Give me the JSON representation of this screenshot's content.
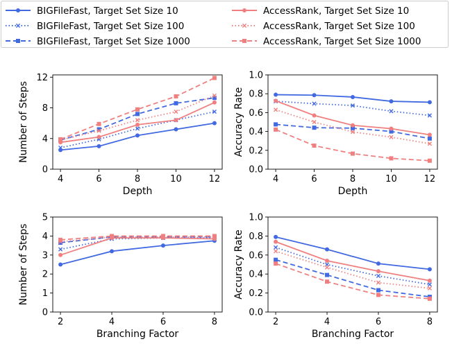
{
  "colors": {
    "blue": "#4169e1",
    "salmon": "#f08080"
  },
  "legend": [
    {
      "name": "BIGFileFast, Target Set Size 10",
      "color": "#4169e1",
      "dash": "solid",
      "marker": "circle"
    },
    {
      "name": "BIGFileFast, Target Set Size 100",
      "color": "#4169e1",
      "dash": "dotted",
      "marker": "x"
    },
    {
      "name": "BIGFileFast, Target Set Size 1000",
      "color": "#4169e1",
      "dash": "dashed",
      "marker": "square"
    },
    {
      "name": "AccessRank, Target Set Size 10",
      "color": "#f08080",
      "dash": "solid",
      "marker": "circle"
    },
    {
      "name": "AccessRank, Target Set Size 100",
      "color": "#f08080",
      "dash": "dotted",
      "marker": "x"
    },
    {
      "name": "AccessRank, Target Set Size 1000",
      "color": "#f08080",
      "dash": "dashed",
      "marker": "square"
    }
  ],
  "chart_data": [
    {
      "type": "line",
      "xlabel": "Depth",
      "ylabel": "Number of Steps",
      "x": [
        4,
        6,
        8,
        10,
        12
      ],
      "xticks": [
        "4",
        "6",
        "8",
        "10",
        "12"
      ],
      "xlim": [
        3.6,
        12.4
      ],
      "ylim": [
        0,
        12.3
      ],
      "yticks": [
        "0",
        "4",
        "8",
        "12"
      ],
      "ytick_values": [
        0,
        4,
        8,
        12
      ],
      "grid": false,
      "series": [
        {
          "name": "BIGFileFast, Target Set Size 10",
          "values": [
            2.5,
            3.0,
            4.4,
            5.2,
            6.0
          ]
        },
        {
          "name": "BIGFileFast, Target Set Size 100",
          "values": [
            2.8,
            3.9,
            5.3,
            6.4,
            7.5
          ]
        },
        {
          "name": "BIGFileFast, Target Set Size 1000",
          "values": [
            3.8,
            5.2,
            7.2,
            8.6,
            9.3
          ]
        },
        {
          "name": "AccessRank, Target Set Size 10",
          "values": [
            3.5,
            4.2,
            5.8,
            6.4,
            8.7
          ]
        },
        {
          "name": "AccessRank, Target Set Size 100",
          "values": [
            3.8,
            5.0,
            6.4,
            7.5,
            9.6
          ]
        },
        {
          "name": "AccessRank, Target Set Size 1000",
          "values": [
            3.9,
            5.9,
            7.8,
            9.5,
            11.9
          ]
        }
      ]
    },
    {
      "type": "line",
      "xlabel": "Depth",
      "ylabel": "Accuracy Rate",
      "x": [
        4,
        6,
        8,
        10,
        12
      ],
      "xticks": [
        "4",
        "6",
        "8",
        "10",
        "12"
      ],
      "xlim": [
        3.6,
        12.4
      ],
      "ylim": [
        0,
        1.0
      ],
      "yticks": [
        "0.0",
        "0.2",
        "0.4",
        "0.6",
        "0.8",
        "1.0"
      ],
      "ytick_values": [
        0,
        0.2,
        0.4,
        0.6,
        0.8,
        1.0
      ],
      "grid": false,
      "series": [
        {
          "name": "BIGFileFast, Target Set Size 10",
          "values": [
            0.79,
            0.785,
            0.765,
            0.72,
            0.71
          ]
        },
        {
          "name": "BIGFileFast, Target Set Size 100",
          "values": [
            0.72,
            0.695,
            0.675,
            0.615,
            0.57
          ]
        },
        {
          "name": "BIGFileFast, Target Set Size 1000",
          "values": [
            0.475,
            0.44,
            0.435,
            0.4,
            0.325
          ]
        },
        {
          "name": "AccessRank, Target Set Size 10",
          "values": [
            0.725,
            0.57,
            0.465,
            0.43,
            0.365
          ]
        },
        {
          "name": "AccessRank, Target Set Size 100",
          "values": [
            0.63,
            0.5,
            0.395,
            0.34,
            0.27
          ]
        },
        {
          "name": "AccessRank, Target Set Size 1000",
          "values": [
            0.42,
            0.25,
            0.165,
            0.115,
            0.09
          ]
        }
      ]
    },
    {
      "type": "line",
      "xlabel": "Branching Factor",
      "ylabel": "Number of Steps",
      "x": [
        2,
        4,
        6,
        8
      ],
      "xticks": [
        "2",
        "4",
        "6",
        "8"
      ],
      "xlim": [
        1.7,
        8.3
      ],
      "ylim": [
        0,
        5
      ],
      "yticks": [
        "0",
        "1",
        "2",
        "3",
        "4",
        "5"
      ],
      "ytick_values": [
        0,
        1,
        2,
        3,
        4,
        5
      ],
      "grid": false,
      "series": [
        {
          "name": "BIGFileFast, Target Set Size 10",
          "values": [
            2.5,
            3.2,
            3.5,
            3.75
          ]
        },
        {
          "name": "BIGFileFast, Target Set Size 100",
          "values": [
            3.3,
            3.85,
            3.9,
            3.9
          ]
        },
        {
          "name": "BIGFileFast, Target Set Size 1000",
          "values": [
            3.65,
            3.95,
            3.95,
            3.95
          ]
        },
        {
          "name": "AccessRank, Target Set Size 10",
          "values": [
            3.0,
            3.9,
            3.9,
            3.85
          ]
        },
        {
          "name": "AccessRank, Target Set Size 100",
          "values": [
            3.7,
            3.95,
            3.95,
            3.95
          ]
        },
        {
          "name": "AccessRank, Target Set Size 1000",
          "values": [
            3.8,
            4.0,
            4.0,
            4.0
          ]
        }
      ]
    },
    {
      "type": "line",
      "xlabel": "Branching Factor",
      "ylabel": "Accuracy Rate",
      "x": [
        2,
        4,
        6,
        8
      ],
      "xticks": [
        "2",
        "4",
        "6",
        "8"
      ],
      "xlim": [
        1.7,
        8.3
      ],
      "ylim": [
        0,
        1.0
      ],
      "yticks": [
        "0.0",
        "0.2",
        "0.4",
        "0.6",
        "0.8",
        "1.0"
      ],
      "ytick_values": [
        0,
        0.2,
        0.4,
        0.6,
        0.8,
        1.0
      ],
      "grid": false,
      "series": [
        {
          "name": "BIGFileFast, Target Set Size 10",
          "values": [
            0.79,
            0.66,
            0.51,
            0.45
          ]
        },
        {
          "name": "BIGFileFast, Target Set Size 100",
          "values": [
            0.68,
            0.5,
            0.38,
            0.29
          ]
        },
        {
          "name": "BIGFileFast, Target Set Size 1000",
          "values": [
            0.55,
            0.39,
            0.23,
            0.16
          ]
        },
        {
          "name": "AccessRank, Target Set Size 10",
          "values": [
            0.74,
            0.54,
            0.43,
            0.33
          ]
        },
        {
          "name": "AccessRank, Target Set Size 100",
          "values": [
            0.64,
            0.47,
            0.31,
            0.25
          ]
        },
        {
          "name": "AccessRank, Target Set Size 1000",
          "values": [
            0.51,
            0.32,
            0.18,
            0.14
          ]
        }
      ]
    }
  ]
}
